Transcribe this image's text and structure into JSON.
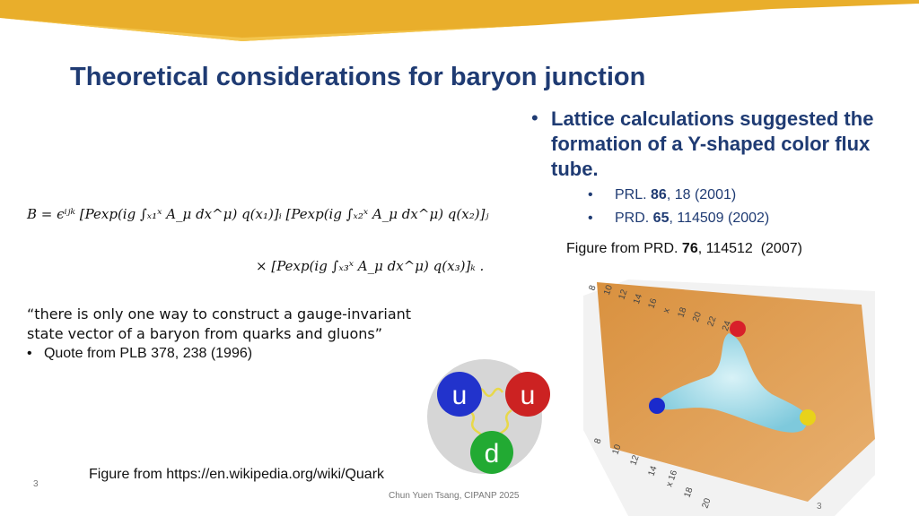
{
  "header": {
    "title": "Theoretical considerations for baryon junction"
  },
  "bullets": {
    "main": "Lattice calculations suggested the formation of a Y-shaped color flux tube.",
    "refs": [
      {
        "prefix": "PRL. ",
        "volume": "86",
        "rest": ", 18 (2001)"
      },
      {
        "prefix": "PRD. ",
        "volume": "65",
        "rest": ", 114509 (2002)"
      }
    ]
  },
  "equation": {
    "line1": "B = ϵⁱʲᵏ [Pexp(ig ∫ₓ₁ˣ A_μ dx^μ) q(x₁)]ᵢ [Pexp(ig ∫ₓ₂ˣ A_μ dx^μ) q(x₂)]ⱼ",
    "line2": "× [Pexp(ig ∫ₓ₃ˣ A_μ dx^μ) q(x₃)]ₖ ."
  },
  "figure_right": {
    "caption": {
      "prefix": "Figure from PRD. ",
      "volume": "76",
      "rest": ", 114512  (2007)"
    },
    "axis_top": [
      "8",
      "10",
      "12",
      "14",
      "16",
      "x",
      "18",
      "20",
      "22",
      "24"
    ],
    "axis_bottom": [
      "8",
      "10",
      "12",
      "14",
      "x 16",
      "18",
      "20"
    ]
  },
  "quote": {
    "text": "“there is only one way to construct a gauge-invariant state vector of a baryon from quarks and gluons”",
    "source": "Quote from PLB 378, 238 (1996)"
  },
  "figure_left": {
    "quarks": [
      "u",
      "u",
      "d"
    ],
    "caption": "Figure from https://en.wikipedia.org/wiki/Quark"
  },
  "footer": {
    "slide_number": "3",
    "author": "Chun Yuen Tsang, CIPANP 2025",
    "page_number": "3"
  }
}
